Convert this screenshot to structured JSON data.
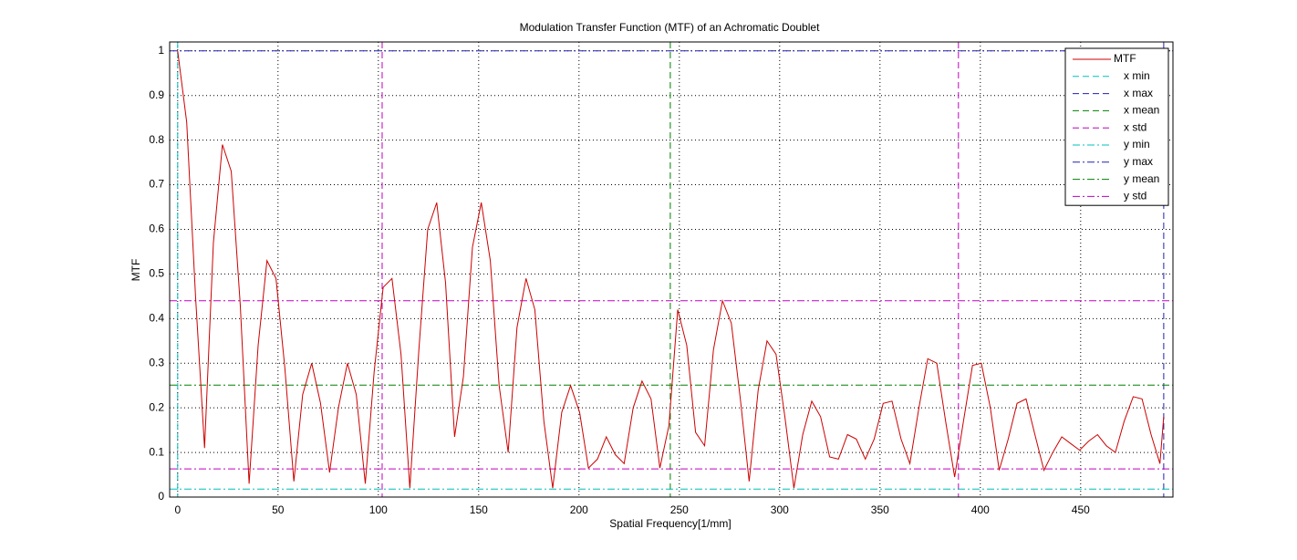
{
  "chart_data": {
    "type": "line",
    "title": "Modulation Transfer Function (MTF) of an Achromatic Doublet",
    "x_label": "Spatial Frequency[1/mm]",
    "y_label": "MTF",
    "xlim": [
      -4,
      496
    ],
    "ylim": [
      0,
      1.02
    ],
    "xticks": [
      0,
      50,
      100,
      150,
      200,
      250,
      300,
      350,
      400,
      450
    ],
    "yticks": [
      0,
      0.1,
      0.2,
      0.3,
      0.4,
      0.5,
      0.6,
      0.7,
      0.8,
      0.9,
      1
    ],
    "grid": true,
    "legend": "upper right",
    "series": [
      {
        "name": "MTF",
        "color": "#cc0000",
        "x": [
          0,
          4.5,
          8.9,
          13.4,
          17.8,
          22.3,
          26.7,
          31.2,
          35.6,
          40.1,
          44.5,
          49,
          53.4,
          57.9,
          62.3,
          66.8,
          71.2,
          75.7,
          80.1,
          84.6,
          89,
          93.5,
          97.9,
          102.4,
          106.8,
          111.3,
          115.7,
          120.2,
          124.6,
          129.1,
          133.5,
          138,
          142.4,
          146.9,
          151.3,
          155.8,
          160.2,
          164.7,
          169.1,
          173.6,
          178,
          182.5,
          186.9,
          191.4,
          195.8,
          200.3,
          204.7,
          209.2,
          213.6,
          218.1,
          222.5,
          227,
          231.4,
          235.9,
          240.3,
          244.8,
          249.2,
          253.7,
          258.1,
          262.6,
          267,
          271.5,
          275.9,
          280.4,
          284.8,
          289.3,
          293.7,
          298.2,
          302.6,
          307.1,
          311.5,
          316,
          320.4,
          324.9,
          329.3,
          333.8,
          338.2,
          342.7,
          347.1,
          351.6,
          356,
          360.5,
          364.9,
          369.4,
          373.8,
          378.3,
          382.7,
          387.2,
          391.6,
          396.1,
          400.5,
          405,
          409.4,
          413.9,
          418.3,
          422.8,
          427.2,
          431.7,
          436.1,
          440.6,
          445,
          449.5,
          453.9,
          458.4,
          462.8,
          467.3,
          471.7,
          476.2,
          480.6,
          485.1,
          489.5,
          491.4
        ],
        "values": [
          1.0,
          0.84,
          0.45,
          0.11,
          0.57,
          0.79,
          0.73,
          0.43,
          0.03,
          0.34,
          0.53,
          0.49,
          0.29,
          0.035,
          0.23,
          0.3,
          0.21,
          0.055,
          0.2,
          0.3,
          0.23,
          0.03,
          0.28,
          0.47,
          0.49,
          0.32,
          0.02,
          0.33,
          0.6,
          0.66,
          0.48,
          0.135,
          0.27,
          0.56,
          0.66,
          0.53,
          0.25,
          0.1,
          0.38,
          0.49,
          0.42,
          0.17,
          0.02,
          0.19,
          0.25,
          0.19,
          0.065,
          0.085,
          0.135,
          0.095,
          0.075,
          0.2,
          0.26,
          0.22,
          0.065,
          0.16,
          0.42,
          0.34,
          0.145,
          0.115,
          0.33,
          0.44,
          0.39,
          0.22,
          0.035,
          0.24,
          0.35,
          0.32,
          0.18,
          0.02,
          0.14,
          0.215,
          0.18,
          0.09,
          0.085,
          0.14,
          0.13,
          0.085,
          0.13,
          0.21,
          0.215,
          0.13,
          0.075,
          0.2,
          0.31,
          0.3,
          0.17,
          0.045,
          0.17,
          0.295,
          0.3,
          0.2,
          0.06,
          0.13,
          0.21,
          0.22,
          0.14,
          0.06,
          0.1,
          0.135,
          0.12,
          0.105,
          0.125,
          0.14,
          0.115,
          0.1,
          0.17,
          0.225,
          0.22,
          0.14,
          0.075,
          0.18
        ]
      }
    ],
    "reference_lines": [
      {
        "name": "x min",
        "axis": "x",
        "style": "dashed",
        "color": "#00bfbf",
        "values": [
          0
        ]
      },
      {
        "name": "x max",
        "axis": "x",
        "style": "dashed",
        "color": "#2020b0",
        "values": [
          491.4
        ]
      },
      {
        "name": "x mean",
        "axis": "x",
        "style": "dashed",
        "color": "#008000",
        "values": [
          245.5
        ]
      },
      {
        "name": "x std",
        "axis": "x",
        "style": "dashed",
        "color": "#bf00bf",
        "values": [
          101.9,
          389.1
        ]
      },
      {
        "name": "y min",
        "axis": "y",
        "style": "dashdot",
        "color": "#00bfbf",
        "values": [
          0.018
        ]
      },
      {
        "name": "y max",
        "axis": "y",
        "style": "dashdot",
        "color": "#2020b0",
        "values": [
          1
        ]
      },
      {
        "name": "y mean",
        "axis": "y",
        "style": "dashdot",
        "color": "#008000",
        "values": [
          0.251
        ]
      },
      {
        "name": "y std",
        "axis": "y",
        "style": "dashdot",
        "color": "#bf00bf",
        "values": [
          0.44,
          0.063
        ]
      }
    ]
  }
}
